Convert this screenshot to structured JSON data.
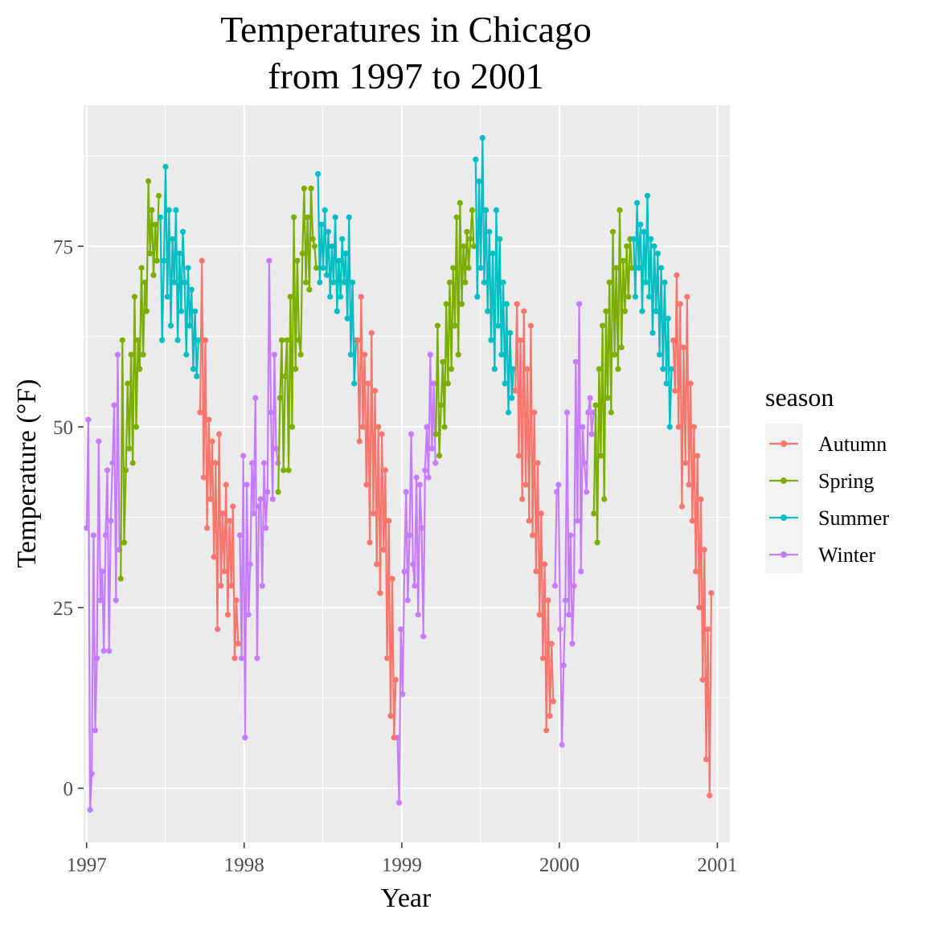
{
  "chart_data": {
    "type": "line",
    "title_lines": [
      "Temperatures in Chicago",
      "from 1997 to 2001"
    ],
    "xlabel": "Year",
    "ylabel": "Temperature (°F)",
    "x_ticks": [
      "1997",
      "1998",
      "1999",
      "2000",
      "2001"
    ],
    "y_ticks": [
      "0",
      "25",
      "50",
      "75"
    ],
    "xlim": [
      "1996-12-25",
      "2001-01-30"
    ],
    "ylim": [
      -7.5,
      94.5
    ],
    "grid": true,
    "legend": {
      "title": "season",
      "position": "right",
      "entries": [
        "Autumn",
        "Spring",
        "Summer",
        "Winter"
      ]
    },
    "series": [
      {
        "name": "Winter",
        "color": "#C77CFF",
        "x": [
          "1997-01-01",
          "1997-01-05",
          "1997-01-09",
          "1997-01-13",
          "1997-01-17",
          "1997-01-21",
          "1997-01-25",
          "1997-01-29",
          "1997-02-02",
          "1997-02-06",
          "1997-02-10",
          "1997-02-14",
          "1997-02-18",
          "1997-02-22",
          "1997-02-26",
          "1997-03-02",
          "1997-03-06",
          "1997-03-10",
          "1997-03-14",
          "1997-03-18",
          "1997-12-22",
          "1997-12-26",
          "1997-12-30",
          "1998-01-03",
          "1998-01-07",
          "1998-01-11",
          "1998-01-15",
          "1998-01-19",
          "1998-01-23",
          "1998-01-27",
          "1998-01-31",
          "1998-02-04",
          "1998-02-08",
          "1998-02-12",
          "1998-02-16",
          "1998-02-20",
          "1998-02-24",
          "1998-02-28",
          "1998-03-04",
          "1998-03-08",
          "1998-03-12",
          "1998-03-16",
          "1998-03-20",
          "1998-12-22",
          "1998-12-26",
          "1998-12-30",
          "1999-01-03",
          "1999-01-07",
          "1999-01-11",
          "1999-01-15",
          "1999-01-19",
          "1999-01-23",
          "1999-01-27",
          "1999-01-31",
          "1999-02-04",
          "1999-02-08",
          "1999-02-12",
          "1999-02-16",
          "1999-02-20",
          "1999-02-24",
          "1999-02-28",
          "1999-03-04",
          "1999-03-08",
          "1999-03-12",
          "1999-03-16",
          "1999-03-20",
          "1999-12-22",
          "1999-12-26",
          "1999-12-30",
          "2000-01-03",
          "2000-01-07",
          "2000-01-11",
          "2000-01-15",
          "2000-01-19",
          "2000-01-23",
          "2000-01-27",
          "2000-01-31",
          "2000-02-04",
          "2000-02-08",
          "2000-02-12",
          "2000-02-16",
          "2000-02-20",
          "2000-02-24",
          "2000-02-28",
          "2000-03-04",
          "2000-03-08",
          "2000-03-12",
          "2000-03-16",
          "2000-03-20"
        ],
        "y": [
          36,
          51,
          -3,
          2,
          35,
          8,
          18,
          48,
          26,
          30,
          19,
          35,
          44,
          19,
          37,
          45,
          53,
          26,
          60,
          33,
          35,
          18,
          46,
          7,
          42,
          24,
          31,
          45,
          38,
          54,
          18,
          39,
          40,
          28,
          45,
          36,
          41,
          73,
          52,
          40,
          60,
          47,
          45,
          7,
          -2,
          22,
          13,
          30,
          41,
          26,
          35,
          49,
          31,
          28,
          43,
          24,
          42,
          36,
          21,
          44,
          50,
          43,
          60,
          47,
          56,
          45,
          28,
          41,
          42,
          22,
          6,
          17,
          26,
          52,
          24,
          35,
          20,
          28,
          59,
          37,
          67,
          30,
          50,
          45,
          41,
          52,
          54,
          49,
          52
        ]
      },
      {
        "name": "Spring",
        "color": "#7CAE00",
        "x": [
          "1997-03-21",
          "1997-03-25",
          "1997-03-29",
          "1997-04-02",
          "1997-04-06",
          "1997-04-10",
          "1997-04-14",
          "1997-04-18",
          "1997-04-22",
          "1997-04-26",
          "1997-04-30",
          "1997-05-04",
          "1997-05-08",
          "1997-05-12",
          "1997-05-16",
          "1997-05-20",
          "1997-05-24",
          "1997-05-28",
          "1997-06-01",
          "1997-06-05",
          "1997-06-09",
          "1997-06-13",
          "1997-06-17",
          "1998-03-21",
          "1998-03-25",
          "1998-03-29",
          "1998-04-02",
          "1998-04-06",
          "1998-04-10",
          "1998-04-14",
          "1998-04-18",
          "1998-04-22",
          "1998-04-26",
          "1998-04-30",
          "1998-05-04",
          "1998-05-08",
          "1998-05-12",
          "1998-05-16",
          "1998-05-20",
          "1998-05-24",
          "1998-05-28",
          "1998-06-01",
          "1998-06-05",
          "1998-06-09",
          "1998-06-13",
          "1998-06-17",
          "1999-03-21",
          "1999-03-25",
          "1999-03-29",
          "1999-04-02",
          "1999-04-06",
          "1999-04-10",
          "1999-04-14",
          "1999-04-18",
          "1999-04-22",
          "1999-04-26",
          "1999-04-30",
          "1999-05-04",
          "1999-05-08",
          "1999-05-12",
          "1999-05-16",
          "1999-05-20",
          "1999-05-24",
          "1999-05-28",
          "1999-06-01",
          "1999-06-05",
          "1999-06-09",
          "1999-06-13",
          "1999-06-17",
          "2000-03-21",
          "2000-03-25",
          "2000-03-29",
          "2000-04-02",
          "2000-04-06",
          "2000-04-10",
          "2000-04-14",
          "2000-04-18",
          "2000-04-22",
          "2000-04-26",
          "2000-04-30",
          "2000-05-04",
          "2000-05-08",
          "2000-05-12",
          "2000-05-16",
          "2000-05-20",
          "2000-05-24",
          "2000-05-28",
          "2000-06-01",
          "2000-06-05",
          "2000-06-09",
          "2000-06-13",
          "2000-06-17"
        ],
        "y": [
          29,
          62,
          34,
          44,
          56,
          47,
          60,
          45,
          68,
          50,
          62,
          58,
          72,
          60,
          70,
          66,
          84,
          74,
          80,
          71,
          78,
          73,
          82,
          41,
          54,
          62,
          44,
          57,
          62,
          44,
          68,
          50,
          79,
          58,
          73,
          62,
          60,
          74,
          83,
          70,
          79,
          69,
          83,
          76,
          75,
          72,
          49,
          64,
          46,
          53,
          59,
          50,
          67,
          56,
          70,
          58,
          72,
          64,
          79,
          60,
          81,
          67,
          75,
          70,
          77,
          72,
          76,
          80,
          75,
          38,
          53,
          34,
          58,
          46,
          64,
          40,
          66,
          54,
          70,
          52,
          77,
          60,
          72,
          58,
          80,
          61,
          73,
          66,
          75,
          68,
          76,
          72
        ]
      },
      {
        "name": "Summer",
        "color": "#00BFC4",
        "x": [
          "1997-06-21",
          "1997-06-25",
          "1997-06-29",
          "1997-07-03",
          "1997-07-07",
          "1997-07-11",
          "1997-07-15",
          "1997-07-19",
          "1997-07-23",
          "1997-07-27",
          "1997-07-31",
          "1997-08-04",
          "1997-08-08",
          "1997-08-12",
          "1997-08-16",
          "1997-08-20",
          "1997-08-24",
          "1997-08-28",
          "1997-09-01",
          "1997-09-05",
          "1997-09-09",
          "1997-09-13",
          "1997-09-17",
          "1998-06-21",
          "1998-06-25",
          "1998-06-29",
          "1998-07-03",
          "1998-07-07",
          "1998-07-11",
          "1998-07-15",
          "1998-07-19",
          "1998-07-23",
          "1998-07-27",
          "1998-07-31",
          "1998-08-04",
          "1998-08-08",
          "1998-08-12",
          "1998-08-16",
          "1998-08-20",
          "1998-08-24",
          "1998-08-28",
          "1998-09-01",
          "1998-09-05",
          "1998-09-09",
          "1998-09-13",
          "1998-09-17",
          "1999-06-21",
          "1999-06-25",
          "1999-06-29",
          "1999-07-03",
          "1999-07-07",
          "1999-07-11",
          "1999-07-15",
          "1999-07-19",
          "1999-07-23",
          "1999-07-27",
          "1999-07-31",
          "1999-08-04",
          "1999-08-08",
          "1999-08-12",
          "1999-08-16",
          "1999-08-20",
          "1999-08-24",
          "1999-08-28",
          "1999-09-01",
          "1999-09-05",
          "1999-09-09",
          "1999-09-13",
          "1999-09-17",
          "2000-06-21",
          "2000-06-25",
          "2000-06-29",
          "2000-07-03",
          "2000-07-07",
          "2000-07-11",
          "2000-07-15",
          "2000-07-19",
          "2000-07-23",
          "2000-07-27",
          "2000-07-31",
          "2000-08-04",
          "2000-08-08",
          "2000-08-12",
          "2000-08-16",
          "2000-08-20",
          "2000-08-24",
          "2000-08-28",
          "2000-09-01",
          "2000-09-05",
          "2000-09-09",
          "2000-09-13",
          "2000-09-17"
        ],
        "y": [
          79,
          62,
          73,
          86,
          68,
          80,
          64,
          76,
          70,
          80,
          62,
          74,
          66,
          77,
          70,
          60,
          72,
          64,
          69,
          58,
          66,
          57,
          62,
          85,
          70,
          78,
          72,
          80,
          71,
          77,
          68,
          75,
          70,
          79,
          66,
          73,
          68,
          76,
          70,
          74,
          65,
          79,
          60,
          70,
          56,
          62,
          87,
          68,
          84,
          72,
          90,
          70,
          80,
          66,
          77,
          62,
          74,
          58,
          80,
          64,
          76,
          60,
          70,
          56,
          67,
          52,
          63,
          54,
          58,
          76,
          68,
          81,
          72,
          78,
          66,
          77,
          70,
          82,
          68,
          76,
          63,
          75,
          66,
          74,
          60,
          72,
          58,
          70,
          56,
          65,
          50,
          58
        ]
      },
      {
        "name": "Autumn",
        "color": "#F8766D",
        "x": [
          "1997-09-21",
          "1997-09-25",
          "1997-09-29",
          "1997-10-03",
          "1997-10-07",
          "1997-10-11",
          "1997-10-15",
          "1997-10-19",
          "1997-10-23",
          "1997-10-27",
          "1997-10-31",
          "1997-11-04",
          "1997-11-08",
          "1997-11-12",
          "1997-11-16",
          "1997-11-20",
          "1997-11-24",
          "1997-11-28",
          "1997-12-02",
          "1997-12-06",
          "1997-12-10",
          "1997-12-14",
          "1997-12-18",
          "1998-09-21",
          "1998-09-25",
          "1998-09-29",
          "1998-10-03",
          "1998-10-07",
          "1998-10-11",
          "1998-10-15",
          "1998-10-19",
          "1998-10-23",
          "1998-10-27",
          "1998-10-31",
          "1998-11-04",
          "1998-11-08",
          "1998-11-12",
          "1998-11-16",
          "1998-11-20",
          "1998-11-24",
          "1998-11-28",
          "1998-12-02",
          "1998-12-06",
          "1998-12-10",
          "1998-12-14",
          "1998-12-18",
          "1999-09-21",
          "1999-09-25",
          "1999-09-29",
          "1999-10-03",
          "1999-10-07",
          "1999-10-11",
          "1999-10-15",
          "1999-10-19",
          "1999-10-23",
          "1999-10-27",
          "1999-10-31",
          "1999-11-04",
          "1999-11-08",
          "1999-11-12",
          "1999-11-16",
          "1999-11-20",
          "1999-11-24",
          "1999-11-28",
          "1999-12-02",
          "1999-12-06",
          "1999-12-10",
          "1999-12-14",
          "1999-12-18",
          "2000-09-21",
          "2000-09-25",
          "2000-09-29",
          "2000-10-03",
          "2000-10-07",
          "2000-10-11",
          "2000-10-15",
          "2000-10-19",
          "2000-10-23",
          "2000-10-27",
          "2000-10-31",
          "2000-11-04",
          "2000-11-08",
          "2000-11-12",
          "2000-11-16",
          "2000-11-20",
          "2000-11-24",
          "2000-11-28",
          "2000-12-02",
          "2000-12-06",
          "2000-12-10",
          "2000-12-14",
          "2000-12-18"
        ],
        "y": [
          52,
          73,
          43,
          62,
          36,
          51,
          40,
          48,
          32,
          45,
          22,
          49,
          28,
          38,
          30,
          42,
          24,
          37,
          28,
          39,
          18,
          26,
          20,
          62,
          48,
          68,
          50,
          60,
          42,
          56,
          34,
          63,
          38,
          55,
          31,
          50,
          27,
          49,
          33,
          44,
          18,
          37,
          10,
          29,
          7,
          15,
          55,
          67,
          46,
          62,
          40,
          66,
          42,
          58,
          37,
          64,
          35,
          52,
          30,
          45,
          24,
          38,
          18,
          31,
          8,
          26,
          10,
          20,
          12,
          62,
          55,
          71,
          50,
          67,
          39,
          61,
          45,
          68,
          42,
          56,
          37,
          50,
          30,
          46,
          25,
          40,
          15,
          33,
          4,
          22,
          -1,
          27
        ]
      }
    ]
  }
}
